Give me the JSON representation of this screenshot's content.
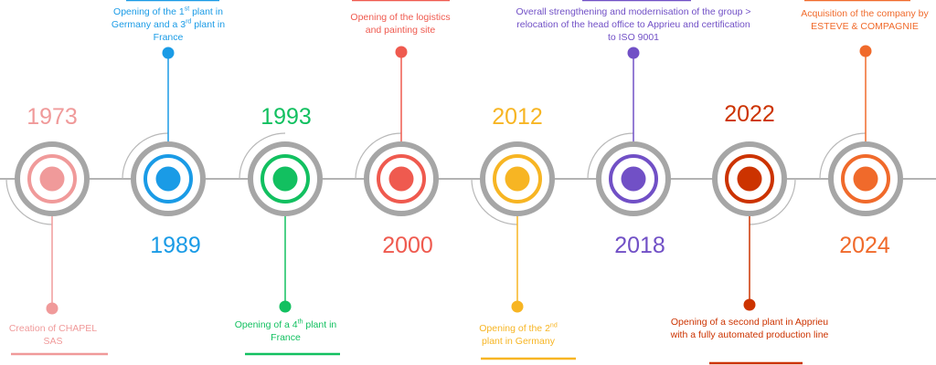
{
  "milestones": [
    {
      "year": "1973",
      "color": "#f09a9a",
      "parts": [
        "Creation of CHAPEL SAS"
      ]
    },
    {
      "year": "1989",
      "color": "#1a9be6",
      "parts": [
        "Opening of the 1",
        "st",
        " plant in Germany and a 3",
        "rd",
        " plant in France"
      ]
    },
    {
      "year": "1993",
      "color": "#12c060",
      "parts": [
        "Opening of a 4",
        "th",
        " plant in France"
      ]
    },
    {
      "year": "2000",
      "color": "#ef5a4f",
      "parts": [
        "Opening of the logistics and painting site"
      ]
    },
    {
      "year": "2012",
      "color": "#f7b523",
      "parts": [
        "Opening of the 2",
        "nd",
        " plant in Germany"
      ]
    },
    {
      "year": "2018",
      "color": "#7150c6",
      "parts": [
        "Overall strengthening and modernisation of the group > relocation of the head office to Apprieu and certification to ISO 9001"
      ]
    },
    {
      "year": "2022",
      "color": "#cc3300",
      "parts": [
        "Opening of a second plant in Apprieu with a fully automated production line"
      ]
    },
    {
      "year": "2024",
      "color": "#f06a2b",
      "parts": [
        "Acquisition of the company by ESTEVE & COMPAGNIE"
      ]
    }
  ]
}
